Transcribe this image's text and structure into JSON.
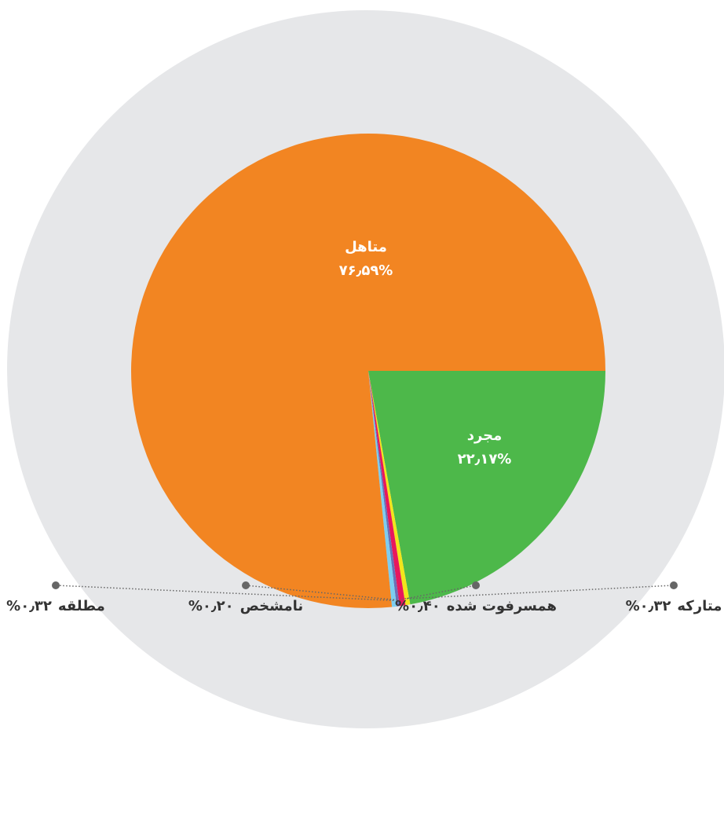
{
  "chart_data": {
    "type": "pie",
    "series": [
      {
        "name": "مجرد",
        "color": "#4db84a",
        "values": [
          22.17
        ],
        "value_labels": [
          "۲۲٫۱۷%"
        ]
      },
      {
        "name": "متارکه",
        "color": "#f2e51b",
        "values": [
          0.32
        ],
        "value_labels": [
          "۰٫۳۲%"
        ]
      },
      {
        "name": "همسرفوت شده",
        "color": "#e8175d",
        "values": [
          0.4
        ],
        "value_labels": [
          "۰٫۴۰%"
        ]
      },
      {
        "name": "نامشخص",
        "color": "#6b6fb5",
        "values": [
          0.2
        ],
        "value_labels": [
          "۰٫۲۰%"
        ]
      },
      {
        "name": "مطلقه",
        "color": "#7dcdf0",
        "values": [
          0.32
        ],
        "value_labels": [
          "۰٫۳۲%"
        ]
      },
      {
        "name": "متاهل",
        "color": "#f28522",
        "values": [
          76.59
        ],
        "value_labels": [
          "۷۶٫۵۹%"
        ]
      }
    ]
  }
}
